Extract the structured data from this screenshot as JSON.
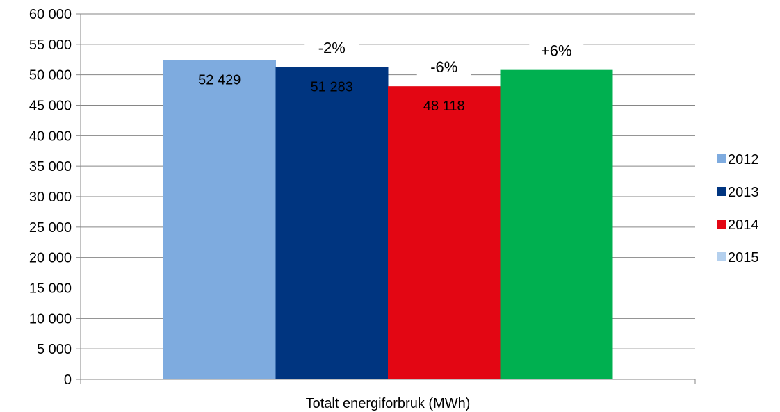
{
  "chart_data": {
    "type": "bar",
    "categories": [
      "Totalt energiforbruk (MWh)"
    ],
    "series": [
      {
        "name": "2012",
        "values": [
          52429
        ],
        "data_label": "52 429",
        "color": "#7eabdf"
      },
      {
        "name": "2013",
        "values": [
          51283
        ],
        "data_label": "51 283",
        "color": "#003580"
      },
      {
        "name": "2014",
        "values": [
          48118
        ],
        "data_label": "48 118",
        "color": "#e30613"
      },
      {
        "name": "2015",
        "values": [
          50800
        ],
        "data_label": "",
        "color": "#00b050",
        "legend_color": "#b4d0ee"
      }
    ],
    "annotations": [
      {
        "text": "-2%",
        "series": 1
      },
      {
        "text": "-6%",
        "series": 2
      },
      {
        "text": "+6%",
        "series": 3
      }
    ],
    "ylim": [
      0,
      60000
    ],
    "ytick_step": 5000,
    "ytick_labels": [
      "0",
      "5 000",
      "10 000",
      "15 000",
      "20 000",
      "25 000",
      "30 000",
      "35 000",
      "40 000",
      "45 000",
      "50 000",
      "55 000",
      "60 000"
    ],
    "xlabel": "",
    "ylabel": "",
    "grid": true,
    "grid_color": "#868686",
    "legend_position": "right"
  }
}
